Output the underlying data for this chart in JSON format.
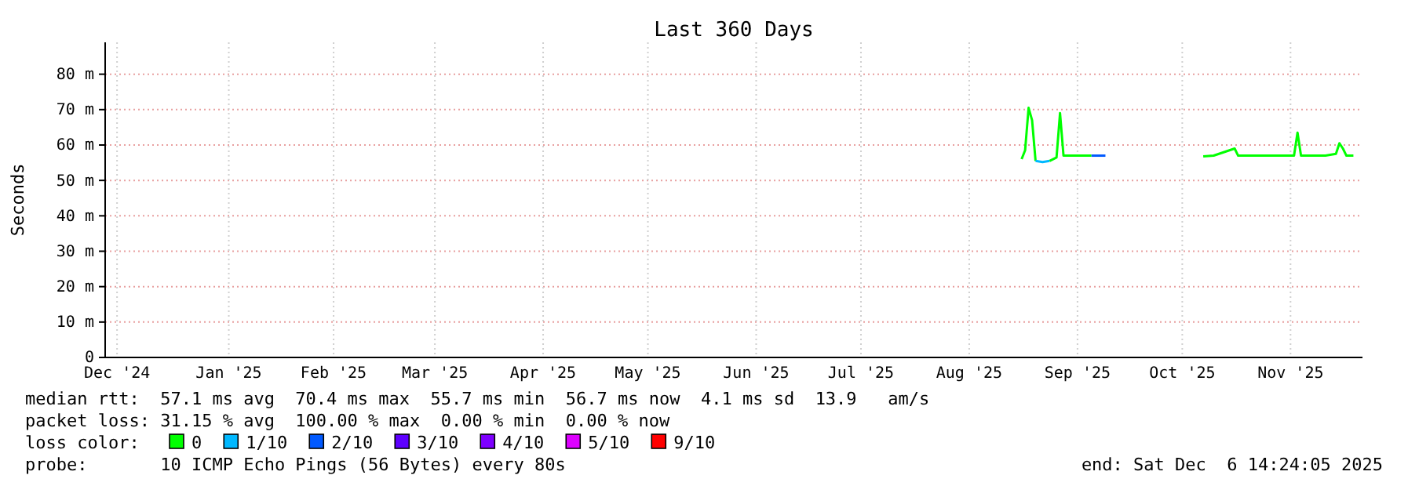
{
  "chart_data": {
    "type": "line",
    "title": "Last 360 Days",
    "ylabel": "Seconds",
    "legend_title": "loss color:",
    "legend": "bottom",
    "grid": true,
    "marker": "none",
    "line_style": "solid",
    "xlim": [
      "2024-12-11T14:24",
      "2025-12-06T14:24"
    ],
    "xticks": [
      {
        "value": "2024-12-15",
        "label": "Dec '24"
      },
      {
        "value": "2025-01-16",
        "label": "Jan '25"
      },
      {
        "value": "2025-02-15",
        "label": "Feb '25"
      },
      {
        "value": "2025-03-16",
        "label": "Mar '25"
      },
      {
        "value": "2025-04-16",
        "label": "Apr '25"
      },
      {
        "value": "2025-05-16",
        "label": "May '25"
      },
      {
        "value": "2025-06-16",
        "label": "Jun '25"
      },
      {
        "value": "2025-07-16",
        "label": "Jul '25"
      },
      {
        "value": "2025-08-16",
        "label": "Aug '25"
      },
      {
        "value": "2025-09-16",
        "label": "Sep '25"
      },
      {
        "value": "2025-10-16",
        "label": "Oct '25"
      },
      {
        "value": "2025-11-16",
        "label": "Nov '25"
      }
    ],
    "ylim": [
      0,
      89
    ],
    "yticks": [
      0,
      {
        "value": 10,
        "label": "10 m"
      },
      {
        "value": 20,
        "label": "20 m"
      },
      {
        "value": 30,
        "label": "30 m"
      },
      {
        "value": 40,
        "label": "40 m"
      },
      {
        "value": 50,
        "label": "50 m"
      },
      {
        "value": 60,
        "label": "60 m"
      },
      {
        "value": 70,
        "label": "70 m"
      },
      {
        "value": 80,
        "label": "80 m"
      }
    ],
    "x": [
      "2025-08-31",
      "2025-09-01",
      "2025-09-02",
      "2025-09-03",
      "2025-09-04",
      "2025-09-06",
      "2025-09-08",
      "2025-09-10",
      "2025-09-11",
      "2025-09-12",
      "2025-09-15",
      "2025-09-20",
      "2025-09-24",
      "2025-09-30",
      "2025-10-22",
      "2025-10-25",
      "2025-10-31",
      "2025-11-01",
      "2025-11-17",
      "2025-11-18",
      "2025-11-19",
      "2025-11-26",
      "2025-11-29",
      "2025-11-30",
      "2025-12-01",
      "2025-12-02",
      "2025-12-04"
    ],
    "series": [
      {
        "name": "0",
        "color": "#00ff00",
        "values": [
          56,
          58.5,
          70.5,
          67,
          55.5,
          null,
          55.5,
          56.5,
          69,
          57,
          57,
          57,
          null,
          null,
          56.8,
          57,
          59,
          57,
          57,
          63.5,
          57,
          57,
          57.5,
          60.5,
          59,
          57,
          57
        ]
      },
      {
        "name": "1/10",
        "color": "#00b8ff",
        "values": [
          null,
          null,
          null,
          null,
          55.5,
          55.2,
          55.5,
          null,
          null,
          null,
          null,
          null,
          null,
          null,
          null,
          null,
          null,
          null,
          null,
          null,
          null,
          null,
          null,
          null,
          null,
          null,
          null
        ]
      },
      {
        "name": "2/10",
        "color": "#0059ff",
        "values": [
          null,
          null,
          null,
          null,
          null,
          null,
          null,
          null,
          null,
          null,
          null,
          57,
          57,
          null,
          null,
          null,
          null,
          null,
          null,
          null,
          null,
          null,
          null,
          null,
          null,
          null,
          null
        ]
      },
      {
        "name": "3/10",
        "color": "#5e00ff",
        "values": [
          null,
          null,
          null,
          null,
          null,
          null,
          null,
          null,
          null,
          null,
          null,
          null,
          null,
          null,
          null,
          null,
          null,
          null,
          null,
          null,
          null,
          null,
          null,
          null,
          null,
          null,
          null
        ]
      },
      {
        "name": "4/10",
        "color": "#7e00ff",
        "values": [
          null,
          null,
          null,
          null,
          null,
          null,
          null,
          null,
          null,
          null,
          null,
          null,
          null,
          null,
          null,
          null,
          null,
          null,
          null,
          null,
          null,
          null,
          null,
          null,
          null,
          null,
          null
        ]
      },
      {
        "name": "5/10",
        "color": "#dd00ff",
        "values": [
          null,
          null,
          null,
          null,
          null,
          null,
          null,
          null,
          null,
          null,
          null,
          null,
          null,
          null,
          null,
          null,
          null,
          null,
          null,
          null,
          null,
          null,
          null,
          null,
          null,
          null,
          null
        ]
      },
      {
        "name": "9/10",
        "color": "#ff0000",
        "values": [
          null,
          null,
          null,
          null,
          null,
          null,
          null,
          null,
          null,
          null,
          null,
          null,
          null,
          null,
          null,
          null,
          null,
          null,
          null,
          null,
          null,
          null,
          null,
          null,
          null,
          null,
          null
        ]
      }
    ],
    "annotations": [
      "median rtt:  57.1 ms avg  70.4 ms max  55.7 ms min  56.7 ms now  4.1 ms sd  13.9   am/s",
      "packet loss: 31.15 % avg  100.00 % max  0.00 % min  0.00 % now",
      "probe:       10 ICMP Echo Pings (56 Bytes) every 80s",
      "end: Sat Dec  6 14:24:05 2025"
    ]
  }
}
